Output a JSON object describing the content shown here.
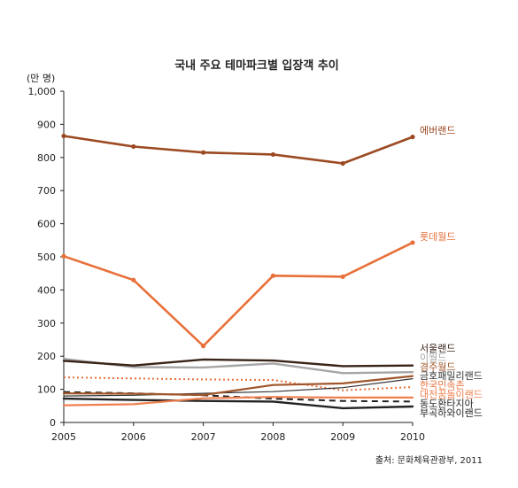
{
  "chart_data": {
    "type": "line",
    "title": "국내 주요 테마파크별 입장객 추이",
    "ylabel": "(만 명)",
    "source": "출처: 문화체육관광부, 2011",
    "x": [
      "2005",
      "2006",
      "2007",
      "2008",
      "2009",
      "2010"
    ],
    "ylim": [
      0,
      1000
    ],
    "yticks": [
      "0",
      "100",
      "200",
      "300",
      "400",
      "500",
      "600",
      "700",
      "800",
      "900",
      "1,000"
    ],
    "grid": false,
    "series": [
      {
        "name": "에버랜드",
        "color": "#9c4a22",
        "width": 2.6,
        "dash": "",
        "markers": true,
        "values": [
          865,
          833,
          815,
          809,
          782,
          862
        ]
      },
      {
        "name": "롯데월드",
        "color": "#e8703a",
        "width": 2.6,
        "dash": "",
        "markers": true,
        "values": [
          502,
          430,
          231,
          443,
          440,
          543
        ]
      },
      {
        "name": "서울랜드",
        "color": "#3a2418",
        "width": 2.4,
        "dash": "",
        "markers": false,
        "values": [
          186,
          172,
          190,
          187,
          170,
          172
        ]
      },
      {
        "name": "이월드",
        "color": "#a6a6a6",
        "width": 2.4,
        "dash": "",
        "markers": false,
        "values": [
          192,
          167,
          166,
          178,
          149,
          152
        ]
      },
      {
        "name": "경주월드",
        "color": "#a0562b",
        "width": 2.2,
        "dash": "",
        "markers": false,
        "values": [
          88,
          87,
          83,
          113,
          118,
          140
        ]
      },
      {
        "name": "금호패밀리랜드",
        "color": "#333333",
        "width": 1.2,
        "dash": "",
        "markers": false,
        "values": [
          80,
          82,
          88,
          93,
          105,
          132
        ]
      },
      {
        "name": "한국민속촌",
        "color": "#e8703a",
        "width": 2.0,
        "dash": "2,3",
        "markers": false,
        "values": [
          136,
          133,
          130,
          128,
          97,
          107
        ]
      },
      {
        "name": "대전꿈돌이랜드",
        "color": "#f08050",
        "width": 2.2,
        "dash": "",
        "markers": false,
        "values": [
          52,
          55,
          73,
          77,
          75,
          75
        ]
      },
      {
        "name": "동도환타지아",
        "color": "#222222",
        "width": 2.4,
        "dash": "",
        "markers": false,
        "values": [
          72,
          68,
          65,
          63,
          43,
          48
        ]
      },
      {
        "name": "부곡하와이랜드",
        "color": "#222222",
        "width": 2.0,
        "dash": "7,5",
        "markers": false,
        "values": [
          92,
          88,
          82,
          72,
          65,
          63
        ]
      }
    ]
  }
}
